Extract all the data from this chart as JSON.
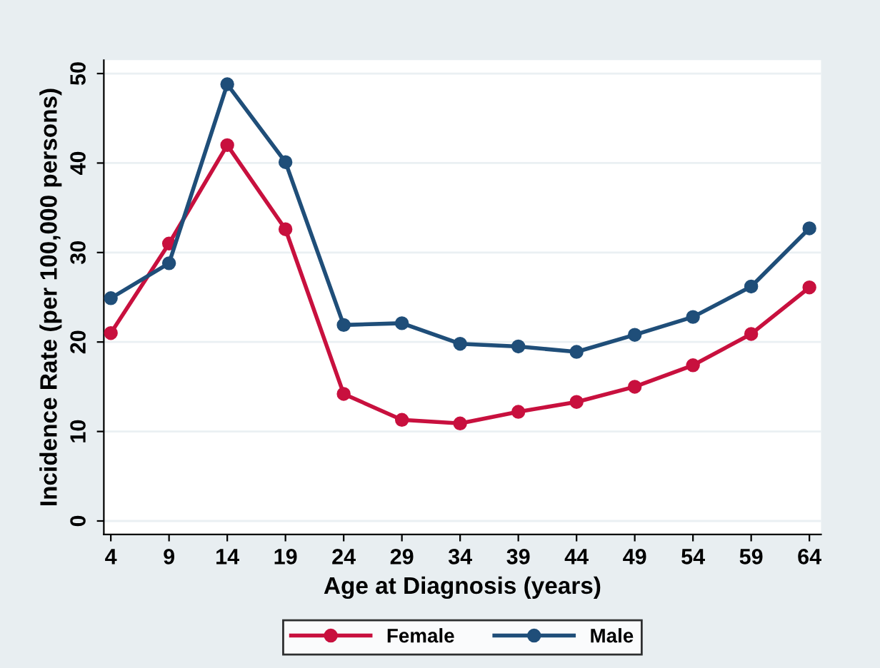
{
  "chart_data": {
    "type": "line",
    "xlabel": "Age at Diagnosis (years)",
    "ylabel": "Incidence Rate (per 100,000 persons)",
    "x": [
      4,
      9,
      14,
      19,
      24,
      29,
      34,
      39,
      44,
      49,
      54,
      59,
      64
    ],
    "series": [
      {
        "name": "Female",
        "color": "#c8103e",
        "values": [
          21.0,
          31.0,
          42.0,
          32.6,
          14.2,
          11.3,
          10.9,
          12.2,
          13.3,
          15.0,
          17.4,
          20.9,
          26.1
        ]
      },
      {
        "name": "Male",
        "color": "#1f4e79",
        "values": [
          24.9,
          28.8,
          48.8,
          40.1,
          21.9,
          22.1,
          19.8,
          19.5,
          18.9,
          20.8,
          22.8,
          26.2,
          32.7
        ]
      }
    ],
    "xlim": [
      3.4,
      65
    ],
    "xticks": [
      4,
      9,
      14,
      19,
      24,
      29,
      34,
      39,
      44,
      49,
      54,
      59,
      64
    ],
    "ylim": [
      -1.5,
      51.5
    ],
    "yticks": [
      0,
      10,
      20,
      30,
      40,
      50
    ],
    "grid": "y",
    "legend": "bottom",
    "marker": "circle",
    "line_style": "solid"
  }
}
